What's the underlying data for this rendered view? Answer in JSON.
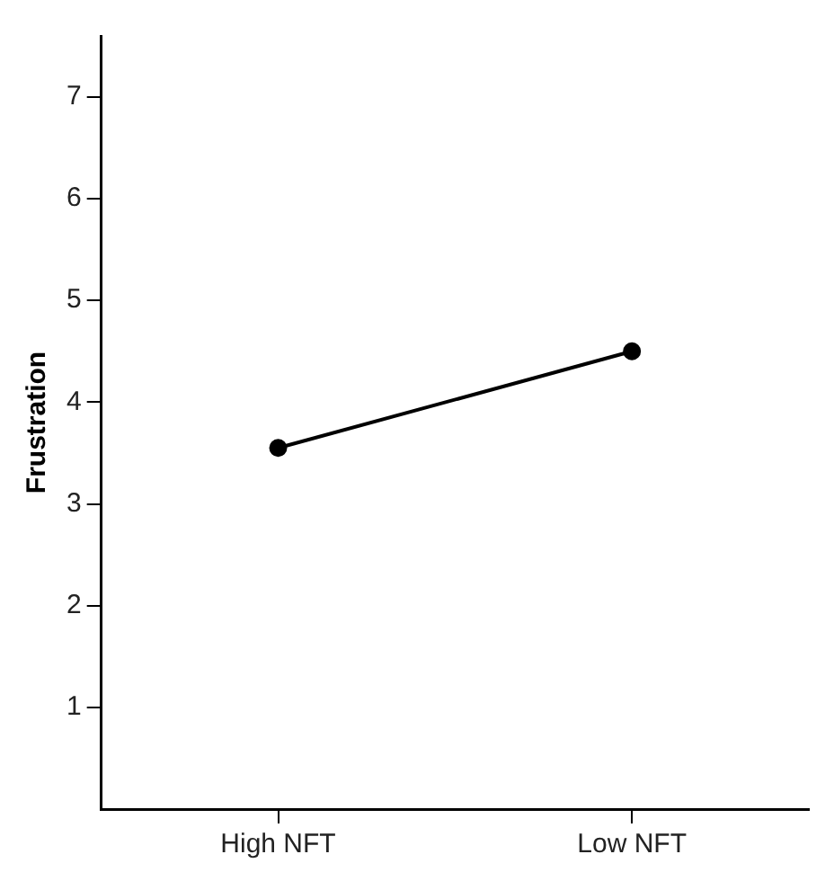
{
  "chart_data": {
    "type": "line",
    "ylabel": "Frustration",
    "categories": [
      "High NFT",
      "Low NFT"
    ],
    "series": [
      {
        "color": "#000000",
        "values": [
          3.55,
          4.5
        ]
      }
    ],
    "ylim": [
      0,
      7.6
    ],
    "yticks": [
      1,
      2,
      3,
      4,
      5,
      6,
      7
    ],
    "grid": false,
    "legend": false,
    "marker": "circle",
    "line_style": "solid"
  }
}
